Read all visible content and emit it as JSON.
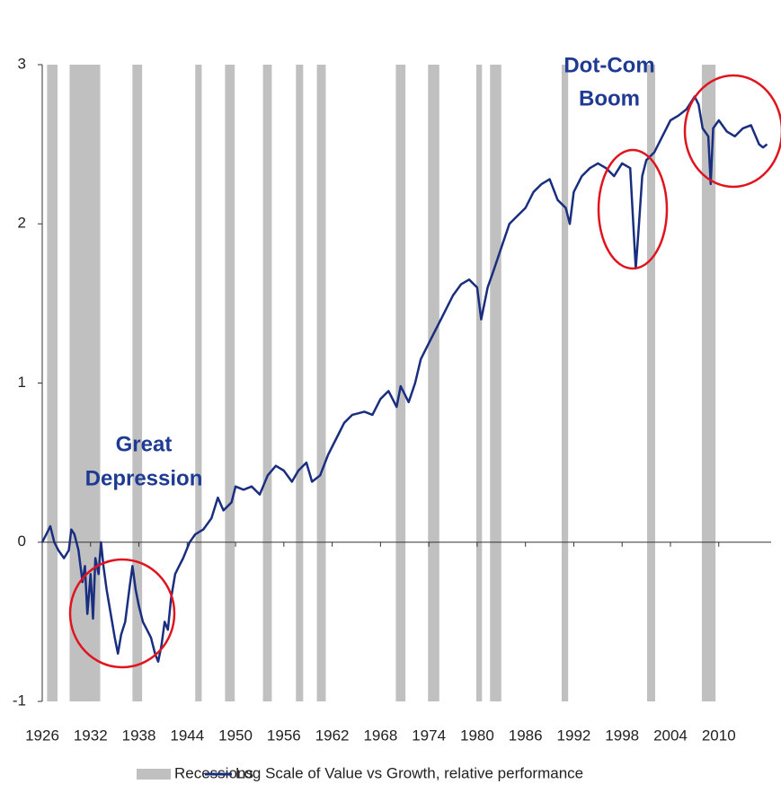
{
  "chart_data": {
    "type": "line",
    "xlim": [
      1926,
      2016.5
    ],
    "ylim": [
      -1,
      3
    ],
    "yticks": [
      3,
      2,
      1,
      0,
      -1
    ],
    "xticks": [
      1926,
      1932,
      1938,
      1944,
      1950,
      1956,
      1962,
      1968,
      1974,
      1980,
      1986,
      1992,
      1998,
      2004,
      2010
    ],
    "recessions": {
      "name": "Recessions",
      "color": "#c0c0c0",
      "periods": [
        [
          1926.6,
          1927.9
        ],
        [
          1929.4,
          1933.2
        ],
        [
          1937.2,
          1938.4
        ],
        [
          1945.0,
          1945.8
        ],
        [
          1948.7,
          1949.9
        ],
        [
          1953.4,
          1954.5
        ],
        [
          1957.5,
          1958.4
        ],
        [
          1960.1,
          1961.2
        ],
        [
          1969.9,
          1971.1
        ],
        [
          1973.9,
          1975.3
        ],
        [
          1979.9,
          1980.6
        ],
        [
          1981.6,
          1983.0
        ],
        [
          1990.5,
          1991.3
        ],
        [
          2001.1,
          2002.1
        ],
        [
          2007.9,
          2009.6
        ]
      ]
    },
    "series": [
      {
        "name": "Log Scale of Value vs Growth, relative performance",
        "color": "#1a2e80",
        "x": [
          1926,
          1926.5,
          1927,
          1927.5,
          1928,
          1928.7,
          1929.3,
          1929.6,
          1930,
          1930.5,
          1931,
          1931.3,
          1931.6,
          1932,
          1932.3,
          1932.6,
          1933,
          1933.3,
          1933.6,
          1934,
          1934.5,
          1935,
          1935.4,
          1935.8,
          1936.3,
          1936.8,
          1937.2,
          1937.6,
          1938,
          1938.5,
          1939,
          1939.5,
          1940,
          1940.4,
          1940.8,
          1941.2,
          1941.6,
          1942,
          1942.5,
          1943,
          1943.5,
          1944.3,
          1945,
          1946,
          1947,
          1947.8,
          1948.5,
          1949.5,
          1950,
          1951,
          1952,
          1953,
          1954,
          1955,
          1956,
          1957,
          1957.8,
          1958.8,
          1959.5,
          1960.5,
          1961.5,
          1962.5,
          1963.5,
          1964.5,
          1966,
          1967,
          1968,
          1969,
          1970,
          1970.5,
          1971.5,
          1972.3,
          1973,
          1974,
          1975,
          1976,
          1977,
          1978,
          1979,
          1980,
          1980.5,
          1981.3,
          1982,
          1983,
          1984,
          1985,
          1986,
          1987,
          1988,
          1989,
          1990,
          1991,
          1991.5,
          1992,
          1993,
          1994,
          1995,
          1996,
          1997,
          1998,
          1999,
          1999.7,
          2000.1,
          2000.5,
          2001,
          2002,
          2003,
          2004,
          2005,
          2006,
          2007,
          2007.5,
          2008,
          2008.7,
          2009,
          2009.3,
          2010,
          2011,
          2012,
          2013,
          2014,
          2015,
          2015.5,
          2016
        ],
        "values": [
          0,
          0.05,
          0.1,
          0.0,
          -0.05,
          -0.1,
          -0.05,
          0.08,
          0.05,
          -0.05,
          -0.25,
          -0.15,
          -0.45,
          -0.2,
          -0.48,
          -0.1,
          -0.2,
          0.0,
          -0.15,
          -0.3,
          -0.45,
          -0.6,
          -0.7,
          -0.58,
          -0.5,
          -0.3,
          -0.15,
          -0.3,
          -0.4,
          -0.5,
          -0.55,
          -0.6,
          -0.7,
          -0.75,
          -0.65,
          -0.5,
          -0.55,
          -0.35,
          -0.2,
          -0.15,
          -0.1,
          0.0,
          0.05,
          0.08,
          0.15,
          0.28,
          0.2,
          0.25,
          0.35,
          0.33,
          0.35,
          0.3,
          0.42,
          0.48,
          0.45,
          0.38,
          0.45,
          0.5,
          0.38,
          0.42,
          0.55,
          0.65,
          0.75,
          0.8,
          0.82,
          0.8,
          0.9,
          0.95,
          0.85,
          0.98,
          0.88,
          1.0,
          1.15,
          1.25,
          1.35,
          1.45,
          1.55,
          1.62,
          1.65,
          1.6,
          1.4,
          1.6,
          1.7,
          1.85,
          2.0,
          2.05,
          2.1,
          2.2,
          2.25,
          2.28,
          2.15,
          2.1,
          2.0,
          2.2,
          2.3,
          2.35,
          2.38,
          2.35,
          2.3,
          2.38,
          2.35,
          1.72,
          2.0,
          2.3,
          2.4,
          2.45,
          2.55,
          2.65,
          2.68,
          2.72,
          2.8,
          2.75,
          2.6,
          2.55,
          2.25,
          2.6,
          2.65,
          2.58,
          2.55,
          2.6,
          2.62,
          2.5,
          2.48,
          2.5
        ]
      }
    ],
    "annotations": [
      {
        "lines": [
          "Great",
          "Depression"
        ]
      },
      {
        "lines": [
          "Dot-Com",
          "Boom"
        ]
      }
    ]
  }
}
